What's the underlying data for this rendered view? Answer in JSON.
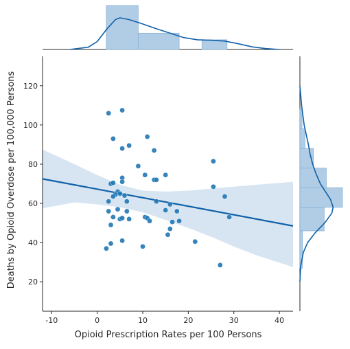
{
  "chart_data": {
    "type": "scatter",
    "title": "",
    "xlabel": "Opioid Prescription Rates per 100 Persons",
    "ylabel": "Deaths by Opioid Overdose per 100,000 Persons",
    "xlim": [
      -12,
      43
    ],
    "ylim": [
      5,
      135
    ],
    "xticks": [
      -10,
      0,
      10,
      20,
      30,
      40
    ],
    "yticks": [
      20,
      40,
      60,
      80,
      100,
      120
    ],
    "grid": false,
    "colors": {
      "points": "#1f77b4",
      "regression_line": "#1060a8",
      "confidence_band": "#c9dcee",
      "histogram_fill": "#a9c8e2",
      "histogram_edge": "#8ab3d6",
      "kde_line": "#1060a8"
    },
    "points": [
      {
        "x": 2.5,
        "y": 106
      },
      {
        "x": 5.5,
        "y": 107.5
      },
      {
        "x": 3.5,
        "y": 93
      },
      {
        "x": 11,
        "y": 94
      },
      {
        "x": 5.5,
        "y": 88
      },
      {
        "x": 7,
        "y": 89.5
      },
      {
        "x": 12.5,
        "y": 87
      },
      {
        "x": 25.5,
        "y": 81.5
      },
      {
        "x": 9,
        "y": 79
      },
      {
        "x": 10.5,
        "y": 74.5
      },
      {
        "x": 15,
        "y": 74.5
      },
      {
        "x": 12.5,
        "y": 72
      },
      {
        "x": 13,
        "y": 72
      },
      {
        "x": 5.5,
        "y": 73
      },
      {
        "x": 3,
        "y": 70
      },
      {
        "x": 3.5,
        "y": 70.5
      },
      {
        "x": 5.5,
        "y": 71
      },
      {
        "x": 25.5,
        "y": 68.5
      },
      {
        "x": 4.5,
        "y": 66
      },
      {
        "x": 4,
        "y": 64.5
      },
      {
        "x": 3.5,
        "y": 63.5
      },
      {
        "x": 5,
        "y": 65
      },
      {
        "x": 6,
        "y": 64
      },
      {
        "x": 28,
        "y": 63.5
      },
      {
        "x": 2.5,
        "y": 61
      },
      {
        "x": 6.5,
        "y": 61
      },
      {
        "x": 13,
        "y": 61
      },
      {
        "x": 16,
        "y": 59.5
      },
      {
        "x": 15,
        "y": 56.5
      },
      {
        "x": 2.5,
        "y": 56
      },
      {
        "x": 4.5,
        "y": 57
      },
      {
        "x": 6.5,
        "y": 56
      },
      {
        "x": 17.5,
        "y": 56
      },
      {
        "x": 3.5,
        "y": 53
      },
      {
        "x": 5,
        "y": 52
      },
      {
        "x": 5.5,
        "y": 52.5
      },
      {
        "x": 7,
        "y": 52
      },
      {
        "x": 10.5,
        "y": 53
      },
      {
        "x": 11,
        "y": 52.5
      },
      {
        "x": 11.5,
        "y": 51
      },
      {
        "x": 16.5,
        "y": 50.5
      },
      {
        "x": 18,
        "y": 51
      },
      {
        "x": 29,
        "y": 53
      },
      {
        "x": 3,
        "y": 49
      },
      {
        "x": 16,
        "y": 47
      },
      {
        "x": 15.5,
        "y": 44
      },
      {
        "x": 5.5,
        "y": 41
      },
      {
        "x": 21.5,
        "y": 40.5
      },
      {
        "x": 3,
        "y": 39.5
      },
      {
        "x": 10,
        "y": 38
      },
      {
        "x": 2,
        "y": 37
      },
      {
        "x": 27,
        "y": 28.5
      }
    ],
    "regression": {
      "x": [
        -12,
        43
      ],
      "y": [
        72.5,
        48.5
      ],
      "confidence_band": {
        "x": [
          -12,
          -5,
          0,
          5,
          10,
          15,
          20,
          25,
          30,
          35,
          43
        ],
        "upper": [
          87.5,
          80,
          74.5,
          69.5,
          66.5,
          66,
          66.5,
          67.5,
          68.5,
          69.5,
          71
        ],
        "lower": [
          57.5,
          60.5,
          59.5,
          58,
          55.5,
          51.5,
          47.5,
          43,
          38,
          33.5,
          27.5
        ]
      }
    },
    "x_marginal": {
      "histogram": [
        {
          "x0": 2,
          "x1": 9,
          "height": 1.0
        },
        {
          "x0": 9,
          "x1": 18,
          "height": 0.37
        },
        {
          "x0": 23,
          "x1": 28.5,
          "height": 0.22
        }
      ],
      "kde": {
        "x": [
          -6,
          -2,
          0,
          2,
          4,
          5,
          7,
          10,
          13,
          16,
          19,
          22,
          25,
          28,
          31,
          34,
          37,
          40
        ],
        "y": [
          0.0,
          0.05,
          0.18,
          0.45,
          0.68,
          0.72,
          0.68,
          0.58,
          0.47,
          0.37,
          0.27,
          0.22,
          0.21,
          0.19,
          0.13,
          0.06,
          0.02,
          0.0
        ]
      }
    },
    "y_marginal": {
      "histogram": [
        {
          "y0": 27,
          "y1": 46,
          "width": 0.06
        },
        {
          "y0": 46,
          "y1": 58,
          "width": 0.57
        },
        {
          "y0": 58,
          "y1": 68,
          "width": 1.0
        },
        {
          "y0": 68,
          "y1": 78,
          "width": 0.62
        },
        {
          "y0": 78,
          "y1": 88,
          "width": 0.32
        },
        {
          "y0": 88,
          "y1": 98,
          "width": 0.12
        },
        {
          "y0": 98,
          "y1": 108,
          "width": 0.05
        }
      ],
      "kde": {
        "y": [
          20,
          28,
          35,
          40,
          45,
          50,
          55,
          58,
          62,
          66,
          70,
          75,
          80,
          85,
          90,
          95,
          100,
          105,
          110,
          115,
          120
        ],
        "x": [
          0.0,
          0.02,
          0.08,
          0.18,
          0.36,
          0.58,
          0.75,
          0.78,
          0.72,
          0.6,
          0.48,
          0.38,
          0.3,
          0.24,
          0.2,
          0.15,
          0.1,
          0.07,
          0.04,
          0.02,
          0.0
        ]
      }
    }
  }
}
